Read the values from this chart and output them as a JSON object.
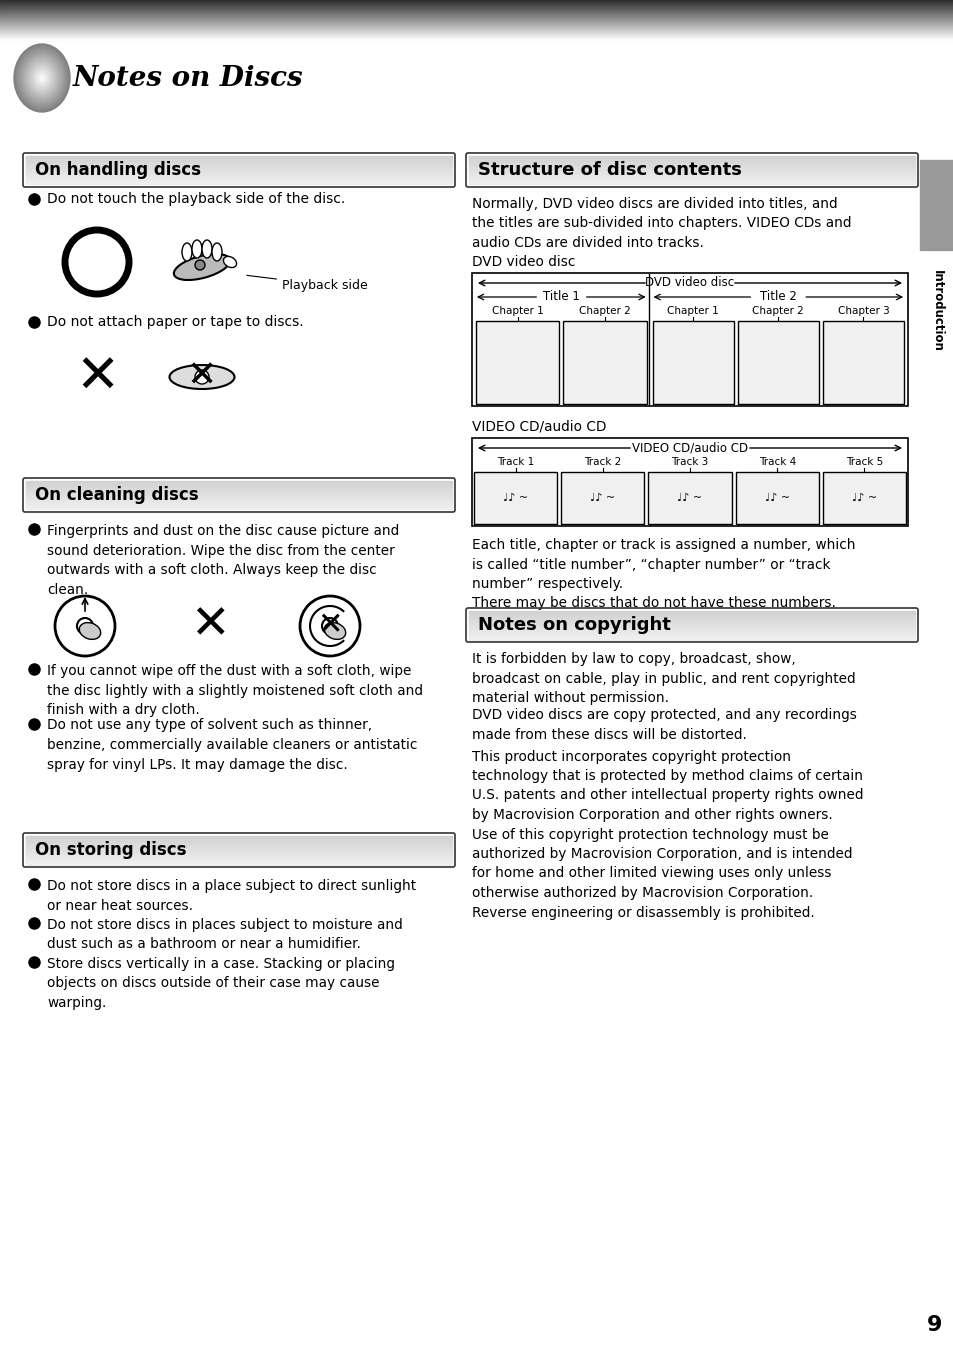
{
  "title": "Notes on Discs",
  "page_number": "9",
  "bg_color": "#ffffff",
  "sidebar_text": "Introduction",
  "handling_title": "On handling discs",
  "handling_bullets": [
    "Do not touch the playback side of the disc.",
    "Do not attach paper or tape to discs."
  ],
  "cleaning_title": "On cleaning discs",
  "cleaning_bullets": [
    "Fingerprints and dust on the disc cause picture and\nsound deterioration. Wipe the disc from the center\noutwards with a soft cloth. Always keep the disc\nclean.",
    "If you cannot wipe off the dust with a soft cloth, wipe\nthe disc lightly with a slightly moistened soft cloth and\nfinish with a dry cloth.",
    "Do not use any type of solvent such as thinner,\nbenzine, commercially available cleaners or antistatic\nspray for vinyl LPs. It may damage the disc."
  ],
  "storing_title": "On storing discs",
  "storing_bullets": [
    "Do not store discs in a place subject to direct sunlight\nor near heat sources.",
    "Do not store discs in places subject to moisture and\ndust such as a bathroom or near a humidifier.",
    "Store discs vertically in a case. Stacking or placing\nobjects on discs outside of their case may cause\nwarping."
  ],
  "structure_title": "Structure of disc contents",
  "structure_intro": "Normally, DVD video discs are divided into titles, and\nthe titles are sub-divided into chapters. VIDEO CDs and\naudio CDs are divided into tracks.",
  "dvd_label": "DVD video disc",
  "title1_label": "Title 1",
  "title2_label": "Title 2",
  "dvd_chapters_t1": [
    "Chapter 1",
    "Chapter 2"
  ],
  "dvd_chapters_t2": [
    "Chapter 1",
    "Chapter 2",
    "Chapter 3"
  ],
  "vcd_section_label": "VIDEO CD/audio CD",
  "vcd_diag_label": "VIDEO CD/audio CD",
  "vcd_tracks": [
    "Track 1",
    "Track 2",
    "Track 3",
    "Track 4",
    "Track 5"
  ],
  "structure_footer": "Each title, chapter or track is assigned a number, which\nis called “title number”, “chapter number” or “track\nnumber” respectively.\nThere may be discs that do not have these numbers.",
  "copyright_title": "Notes on copyright",
  "copyright_text1": "It is forbidden by law to copy, broadcast, show,\nbroadcast on cable, play in public, and rent copyrighted\nmaterial without permission.",
  "copyright_text2": "DVD video discs are copy protected, and any recordings\nmade from these discs will be distorted.",
  "copyright_text3": "This product incorporates copyright protection\ntechnology that is protected by method claims of certain\nU.S. patents and other intellectual property rights owned\nby Macrovision Corporation and other rights owners.\nUse of this copyright protection technology must be\nauthorized by Macrovision Corporation, and is intended\nfor home and other limited viewing uses only unless\notherwise authorized by Macrovision Corporation.\nReverse engineering or disassembly is prohibited."
}
